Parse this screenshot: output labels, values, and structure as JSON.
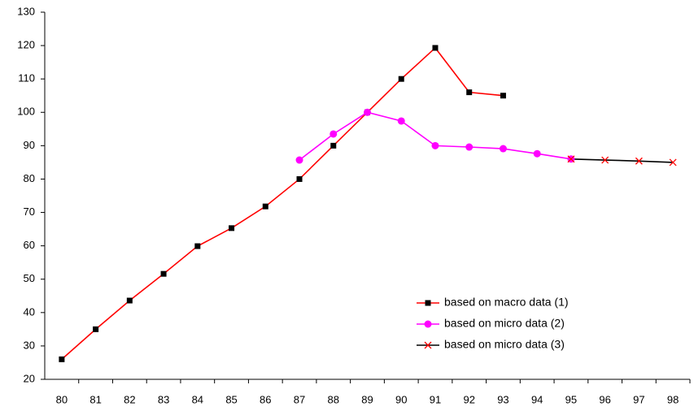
{
  "chart_data": {
    "type": "line",
    "categories": [
      "80",
      "81",
      "82",
      "83",
      "84",
      "85",
      "86",
      "87",
      "88",
      "89",
      "90",
      "91",
      "92",
      "93",
      "94",
      "95",
      "96",
      "97",
      "98"
    ],
    "series": [
      {
        "name": "based on macro data (1)",
        "color": "#ff0000",
        "marker": "square",
        "marker_color": "#000000",
        "values": [
          26,
          35,
          43.6,
          51.6,
          59.9,
          65.3,
          71.8,
          80,
          90,
          100,
          110,
          119.3,
          106,
          105,
          null,
          null,
          null,
          null,
          null
        ]
      },
      {
        "name": "based on micro data (2)",
        "color": "#ff00ff",
        "marker": "circle",
        "marker_color": "#ff00ff",
        "values": [
          null,
          null,
          null,
          null,
          null,
          null,
          null,
          85.7,
          93.5,
          100,
          97.4,
          90,
          89.6,
          89.1,
          87.6,
          86,
          null,
          null,
          null
        ]
      },
      {
        "name": "based on micro data (3)",
        "color": "#000000",
        "marker": "x",
        "marker_color": "#ff0000",
        "values": [
          null,
          null,
          null,
          null,
          null,
          null,
          null,
          null,
          null,
          null,
          null,
          null,
          null,
          null,
          null,
          86,
          85.7,
          85.4,
          85
        ]
      }
    ],
    "ylim": [
      20,
      130
    ],
    "yticks": [
      20,
      30,
      40,
      50,
      60,
      70,
      80,
      90,
      100,
      110,
      120,
      130
    ],
    "grid": false,
    "legend": "lower-right"
  }
}
